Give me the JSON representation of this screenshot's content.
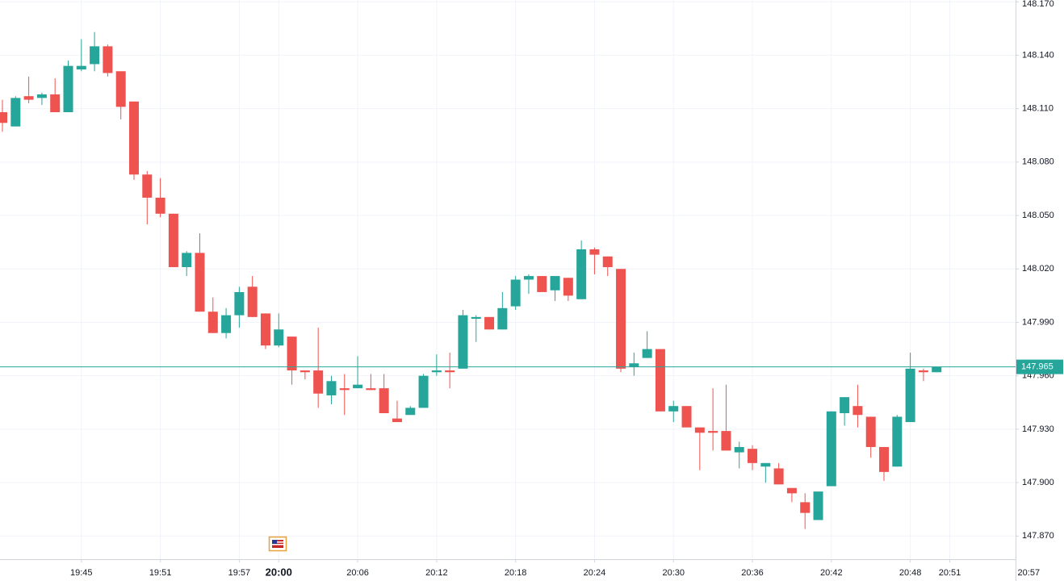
{
  "chart_data": {
    "type": "candlestick",
    "x": [
      "19:39",
      "19:40",
      "19:41",
      "19:42",
      "19:43",
      "19:44",
      "19:45",
      "19:46",
      "19:47",
      "19:48",
      "19:49",
      "19:50",
      "19:51",
      "19:52",
      "19:53",
      "19:54",
      "19:55",
      "19:56",
      "19:57",
      "19:58",
      "19:59",
      "20:00",
      "20:01",
      "20:02",
      "20:03",
      "20:04",
      "20:05",
      "20:06",
      "20:07",
      "20:08",
      "20:09",
      "20:10",
      "20:11",
      "20:12",
      "20:13",
      "20:14",
      "20:15",
      "20:16",
      "20:17",
      "20:18",
      "20:19",
      "20:20",
      "20:21",
      "20:22",
      "20:23",
      "20:24",
      "20:25",
      "20:26",
      "20:27",
      "20:28",
      "20:29",
      "20:30",
      "20:31",
      "20:32",
      "20:33",
      "20:34",
      "20:35",
      "20:36",
      "20:37",
      "20:38",
      "20:39",
      "20:40",
      "20:41",
      "20:42",
      "20:43",
      "20:44",
      "20:45",
      "20:46",
      "20:47",
      "20:48",
      "20:49",
      "20:50"
    ],
    "open": [
      148.108,
      148.1,
      148.117,
      148.116,
      148.118,
      148.108,
      148.132,
      148.135,
      148.145,
      148.131,
      148.114,
      148.073,
      148.06,
      148.051,
      148.021,
      148.029,
      147.996,
      147.984,
      147.994,
      148.01,
      147.995,
      147.977,
      147.982,
      147.963,
      147.963,
      147.949,
      147.953,
      147.953,
      147.953,
      147.953,
      147.936,
      147.938,
      147.942,
      147.962,
      147.963,
      147.964,
      147.992,
      147.993,
      147.986,
      147.999,
      148.014,
      148.016,
      148.008,
      148.015,
      148.003,
      148.031,
      148.027,
      148.02,
      147.965,
      147.97,
      147.975,
      147.94,
      147.943,
      147.931,
      147.929,
      147.929,
      147.917,
      147.919,
      147.909,
      147.908,
      147.897,
      147.889,
      147.879,
      147.898,
      147.939,
      147.943,
      147.937,
      147.92,
      147.909,
      147.934,
      147.963,
      147.962
    ],
    "high": [
      148.115,
      148.117,
      148.128,
      148.119,
      148.127,
      148.137,
      148.149,
      148.153,
      148.146,
      148.131,
      148.114,
      148.075,
      148.071,
      148.051,
      148.03,
      148.04,
      148.004,
      147.998,
      148.01,
      148.016,
      147.995,
      147.995,
      147.982,
      147.963,
      147.987,
      147.96,
      147.961,
      147.971,
      147.961,
      147.961,
      147.946,
      147.943,
      147.961,
      147.972,
      147.973,
      147.997,
      147.994,
      147.993,
      148.007,
      148.016,
      148.017,
      148.016,
      148.016,
      148.015,
      148.036,
      148.032,
      148.027,
      148.02,
      147.973,
      147.985,
      147.975,
      147.946,
      147.943,
      147.931,
      147.953,
      147.955,
      147.923,
      147.921,
      147.911,
      147.911,
      147.897,
      147.894,
      147.895,
      147.94,
      147.948,
      147.955,
      147.937,
      147.92,
      147.938,
      147.973,
      147.964,
      147.965
    ],
    "low": [
      148.097,
      148.1,
      148.113,
      148.112,
      148.108,
      148.108,
      148.131,
      148.131,
      148.128,
      148.104,
      148.07,
      148.045,
      148.049,
      148.021,
      148.016,
      147.996,
      147.984,
      147.981,
      147.987,
      147.993,
      147.975,
      147.976,
      147.955,
      147.958,
      147.942,
      147.944,
      147.938,
      147.953,
      147.952,
      147.939,
      147.934,
      147.938,
      147.942,
      147.96,
      147.953,
      147.964,
      147.979,
      147.986,
      147.986,
      147.997,
      148.006,
      148.007,
      148.002,
      148.002,
      148.003,
      148.017,
      148.016,
      147.962,
      147.96,
      147.97,
      147.94,
      147.934,
      147.931,
      147.907,
      147.918,
      147.918,
      147.908,
      147.907,
      147.9,
      147.899,
      147.889,
      147.874,
      147.879,
      147.898,
      147.932,
      147.931,
      147.914,
      147.901,
      147.909,
      147.934,
      147.957,
      147.962
    ],
    "close": [
      148.102,
      148.116,
      148.115,
      148.118,
      148.108,
      148.134,
      148.134,
      148.145,
      148.13,
      148.111,
      148.073,
      148.06,
      148.051,
      148.021,
      148.029,
      147.996,
      147.984,
      147.994,
      148.007,
      147.993,
      147.977,
      147.986,
      147.963,
      147.962,
      147.95,
      147.957,
      147.952,
      147.955,
      147.952,
      147.939,
      147.934,
      147.942,
      147.96,
      147.963,
      147.962,
      147.994,
      147.993,
      147.986,
      147.998,
      148.014,
      148.016,
      148.007,
      148.016,
      148.005,
      148.031,
      148.028,
      148.021,
      147.964,
      147.967,
      147.975,
      147.94,
      147.943,
      147.931,
      147.928,
      147.928,
      147.918,
      147.92,
      147.911,
      147.911,
      147.899,
      147.894,
      147.883,
      147.895,
      147.94,
      147.948,
      147.938,
      147.92,
      147.906,
      147.937,
      147.964,
      147.962,
      147.965
    ],
    "up_color": "#26a69a",
    "down_color": "#ef5350",
    "xlim": [
      "19:39",
      "20:56"
    ],
    "xticks": [
      "19:45",
      "19:51",
      "19:57",
      "20:00",
      "20:06",
      "20:12",
      "20:18",
      "20:24",
      "20:30",
      "20:36",
      "20:42",
      "20:48",
      "20:51",
      "20:57"
    ],
    "ylim": [
      147.857,
      148.171
    ],
    "yticks": [
      {
        "value": 147.87,
        "label": "147.870"
      },
      {
        "value": 147.9,
        "label": "147.900"
      },
      {
        "value": 147.93,
        "label": "147.930"
      },
      {
        "value": 147.96,
        "label": "147.960"
      },
      {
        "value": 147.99,
        "label": "147.990"
      },
      {
        "value": 148.02,
        "label": "148.020"
      },
      {
        "value": 148.05,
        "label": "148.050"
      },
      {
        "value": 148.08,
        "label": "148.080"
      },
      {
        "value": 148.11,
        "label": "148.110"
      },
      {
        "value": 148.14,
        "label": "148.140"
      },
      {
        "value": 148.17,
        "label": "148.170"
      }
    ],
    "last_price": 147.965,
    "last_price_color": "#26a69a",
    "grid": true
  }
}
